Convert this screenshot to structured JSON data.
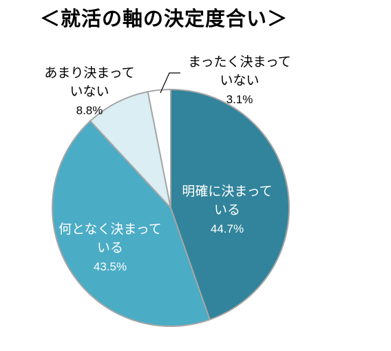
{
  "chart_data": {
    "type": "pie",
    "title": "＜就活の軸の決定度合い＞",
    "slices": [
      {
        "label_lines": [
          "明確に決まって",
          "いる"
        ],
        "value_label": "44.7%",
        "value": 44.7,
        "color": "#31849b",
        "text_color": "#ffffff"
      },
      {
        "label_lines": [
          "何となく決まって",
          "いる"
        ],
        "value_label": "43.5%",
        "value": 43.5,
        "color": "#4bacc6",
        "text_color": "#ffffff"
      },
      {
        "label_lines": [
          "あまり決まって",
          "いない"
        ],
        "value_label": "8.8%",
        "value": 8.8,
        "color": "#daeef3",
        "text_color": "#000000"
      },
      {
        "label_lines": [
          "まったく決まって",
          "いない"
        ],
        "value_label": "3.1%",
        "value": 3.1,
        "color": "#ffffff",
        "text_color": "#000000"
      }
    ],
    "start_angle_deg": 0,
    "direction": "clockwise",
    "edge_color": "#a6a6a6"
  }
}
